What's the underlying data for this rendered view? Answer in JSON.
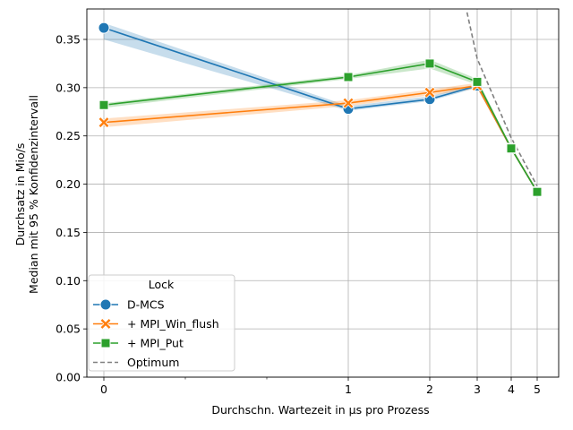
{
  "chart_data": {
    "type": "line",
    "xlabel": "Durchschn. Wartezeit in µs pro Prozess",
    "ylabel_line1": "Durchsatz in Mio/s",
    "ylabel_line2": "Median mit 95 % Konfidenzintervall",
    "x_ticks": [
      {
        "value": 0,
        "label": "0"
      },
      {
        "value": 1,
        "label": "1"
      },
      {
        "value": 2,
        "label": "2"
      },
      {
        "value": 3,
        "label": "3"
      },
      {
        "value": 4,
        "label": "4"
      },
      {
        "value": 5,
        "label": "5"
      }
    ],
    "y_ticks": [
      {
        "value": 0.0,
        "label": "0.00"
      },
      {
        "value": 0.05,
        "label": "0.05"
      },
      {
        "value": 0.1,
        "label": "0.10"
      },
      {
        "value": 0.15,
        "label": "0.15"
      },
      {
        "value": 0.2,
        "label": "0.20"
      },
      {
        "value": 0.25,
        "label": "0.25"
      },
      {
        "value": 0.3,
        "label": "0.30"
      },
      {
        "value": 0.35,
        "label": "0.35"
      }
    ],
    "ylim": [
      0,
      0.375
    ],
    "grid": true,
    "legend": {
      "title": "Lock",
      "placement": "lower-left"
    },
    "series": [
      {
        "name": "D-MCS",
        "color": "#1f77b4",
        "marker": "circle",
        "x": [
          0,
          1,
          2,
          3,
          4,
          5
        ],
        "y": [
          0.362,
          0.278,
          0.288,
          0.302,
          0.237,
          0.192
        ],
        "ci_low": [
          0.35,
          0.276,
          0.286,
          0.3,
          0.236,
          0.191
        ],
        "ci_high": [
          0.367,
          0.281,
          0.291,
          0.304,
          0.239,
          0.193
        ]
      },
      {
        "name": "+ MPI_Win_flush",
        "color": "#ff7f0e",
        "marker": "x",
        "x": [
          0,
          1,
          2,
          3,
          4,
          5
        ],
        "y": [
          0.264,
          0.284,
          0.295,
          0.302,
          0.237,
          0.192
        ],
        "ci_low": [
          0.259,
          0.281,
          0.292,
          0.299,
          0.236,
          0.191
        ],
        "ci_high": [
          0.268,
          0.287,
          0.298,
          0.305,
          0.239,
          0.193
        ]
      },
      {
        "name": "+ MPI_Put",
        "color": "#2ca02c",
        "marker": "square",
        "x": [
          0,
          1,
          2,
          3,
          4,
          5
        ],
        "y": [
          0.282,
          0.311,
          0.325,
          0.306,
          0.237,
          0.192
        ],
        "ci_low": [
          0.279,
          0.309,
          0.32,
          0.303,
          0.236,
          0.191
        ],
        "ci_high": [
          0.284,
          0.313,
          0.329,
          0.309,
          0.239,
          0.193
        ]
      },
      {
        "name": "Optimum",
        "color": "#808080",
        "marker": "none",
        "dashed": true,
        "x": [
          2.75,
          3,
          4,
          5
        ],
        "y": [
          0.378,
          0.33,
          0.248,
          0.198
        ]
      }
    ]
  }
}
